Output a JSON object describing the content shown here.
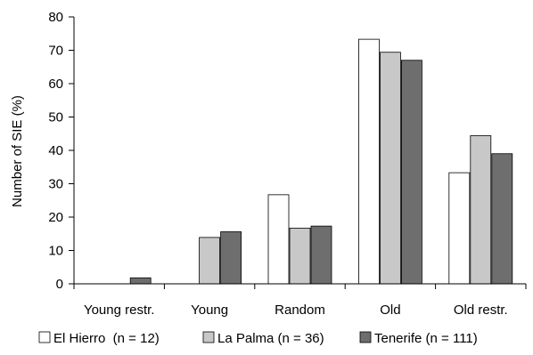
{
  "chart_data": {
    "type": "bar",
    "title": "",
    "xlabel": "",
    "ylabel": "Number of SIE (%)",
    "ylim": [
      0,
      80
    ],
    "yticks": [
      0,
      10,
      20,
      30,
      40,
      50,
      60,
      70,
      80
    ],
    "grid": false,
    "legend_position": "bottom",
    "categories": [
      "Young restr.",
      "Young",
      "Random",
      "Old",
      "Old restr."
    ],
    "series": [
      {
        "name": "El Hierro  (n = 12)",
        "color": "#ffffff",
        "values": [
          0,
          0,
          26.7,
          73.3,
          33.3
        ]
      },
      {
        "name": "La Palma (n = 36)",
        "color": "#c8c8c8",
        "values": [
          0,
          13.9,
          16.7,
          69.4,
          44.4
        ]
      },
      {
        "name": "Tenerife (n = 111)",
        "color": "#6e6e6e",
        "values": [
          1.8,
          15.6,
          17.3,
          67.0,
          39.0
        ]
      }
    ]
  }
}
